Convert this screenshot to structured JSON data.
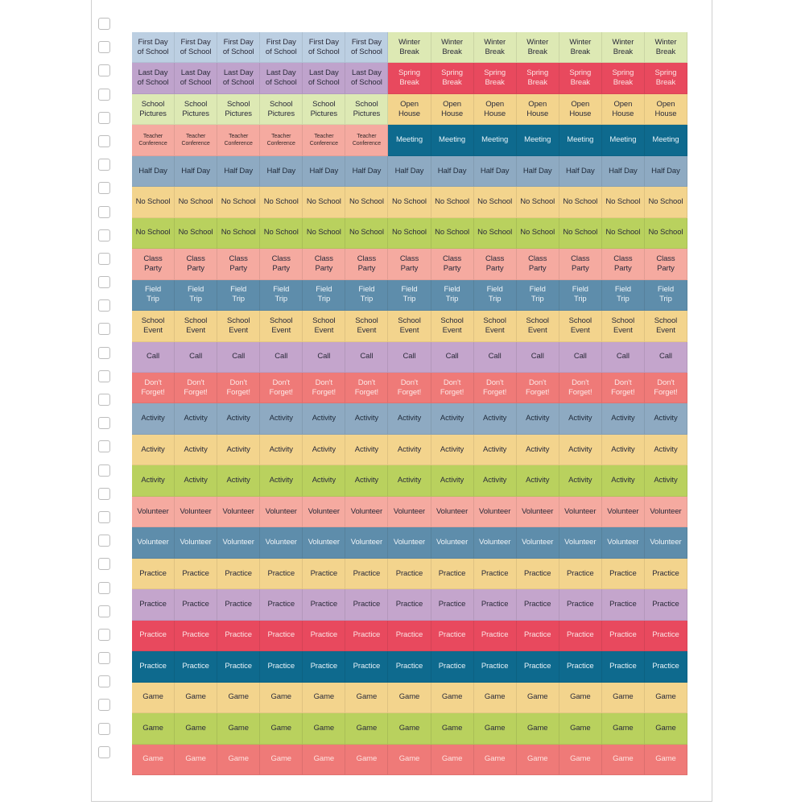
{
  "sheet": {
    "rows": [
      {
        "segments": [
          {
            "label": "First Day\nof School",
            "count": 6,
            "bg": "#bccfe2",
            "fg": "#2b2b3a"
          },
          {
            "label": "Winter\nBreak",
            "count": 7,
            "bg": "#dde9b4",
            "fg": "#2b2b3a"
          }
        ]
      },
      {
        "segments": [
          {
            "label": "Last Day\nof School",
            "count": 6,
            "bg": "#bfa3cc",
            "fg": "#2b2b3a"
          },
          {
            "label": "Spring\nBreak",
            "count": 7,
            "bg": "#e8495e",
            "fg": "#fbe3e3"
          }
        ]
      },
      {
        "segments": [
          {
            "label": "School\nPictures",
            "count": 6,
            "bg": "#dde9b4",
            "fg": "#2b2b3a"
          },
          {
            "label": "Open\nHouse",
            "count": 7,
            "bg": "#f3d48d",
            "fg": "#2b2b3a"
          }
        ]
      },
      {
        "segments": [
          {
            "label": "Teacher\nConference",
            "count": 6,
            "bg": "#f5aaa0",
            "fg": "#3a2b2b",
            "small": true
          },
          {
            "label": "Meeting",
            "count": 7,
            "bg": "#0e6a8e",
            "fg": "#e6f2f8"
          }
        ]
      },
      {
        "segments": [
          {
            "label": "Half Day",
            "count": 13,
            "bg": "#8eaac2",
            "fg": "#1f2a3a"
          }
        ]
      },
      {
        "segments": [
          {
            "label": "No School",
            "count": 13,
            "bg": "#f3d48d",
            "fg": "#2b2b3a"
          }
        ]
      },
      {
        "segments": [
          {
            "label": "No School",
            "count": 13,
            "bg": "#b9d15e",
            "fg": "#2b2b3a"
          }
        ]
      },
      {
        "segments": [
          {
            "label": "Class\nParty",
            "count": 13,
            "bg": "#f5aaa0",
            "fg": "#2b2b3a"
          }
        ]
      },
      {
        "segments": [
          {
            "label": "Field\nTrip",
            "count": 13,
            "bg": "#5e8dab",
            "fg": "#eef4f8"
          }
        ]
      },
      {
        "segments": [
          {
            "label": "School\nEvent",
            "count": 13,
            "bg": "#f3d48d",
            "fg": "#2b2b3a"
          }
        ]
      },
      {
        "segments": [
          {
            "label": "Call",
            "count": 13,
            "bg": "#c4a5cc",
            "fg": "#2b2b3a"
          }
        ]
      },
      {
        "segments": [
          {
            "label": "Don't\nForget!",
            "count": 13,
            "bg": "#ef7a78",
            "fg": "#fde8e6"
          }
        ]
      },
      {
        "segments": [
          {
            "label": "Activity",
            "count": 13,
            "bg": "#8eaac2",
            "fg": "#1f2a3a"
          }
        ]
      },
      {
        "segments": [
          {
            "label": "Activity",
            "count": 13,
            "bg": "#f3d48d",
            "fg": "#2b2b3a"
          }
        ]
      },
      {
        "segments": [
          {
            "label": "Activity",
            "count": 13,
            "bg": "#b9d15e",
            "fg": "#2b2b3a"
          }
        ]
      },
      {
        "segments": [
          {
            "label": "Volunteer",
            "count": 13,
            "bg": "#f5aaa0",
            "fg": "#2b2b3a"
          }
        ]
      },
      {
        "segments": [
          {
            "label": "Volunteer",
            "count": 13,
            "bg": "#5e8dab",
            "fg": "#eef4f8"
          }
        ]
      },
      {
        "segments": [
          {
            "label": "Practice",
            "count": 13,
            "bg": "#f3d48d",
            "fg": "#2b2b3a"
          }
        ]
      },
      {
        "segments": [
          {
            "label": "Practice",
            "count": 13,
            "bg": "#c4a5cc",
            "fg": "#2b2b3a"
          }
        ]
      },
      {
        "segments": [
          {
            "label": "Practice",
            "count": 13,
            "bg": "#e8495e",
            "fg": "#fbe3e3"
          }
        ]
      },
      {
        "segments": [
          {
            "label": "Practice",
            "count": 13,
            "bg": "#0e6a8e",
            "fg": "#e6f2f8"
          }
        ]
      },
      {
        "segments": [
          {
            "label": "Game",
            "count": 13,
            "bg": "#f3d48d",
            "fg": "#2b2b3a"
          }
        ]
      },
      {
        "segments": [
          {
            "label": "Game",
            "count": 13,
            "bg": "#b9d15e",
            "fg": "#2b2b3a"
          }
        ]
      },
      {
        "segments": [
          {
            "label": "Game",
            "count": 13,
            "bg": "#ef7a78",
            "fg": "#fde3e0"
          }
        ]
      }
    ]
  },
  "spiral": {
    "hole_count": 32
  }
}
